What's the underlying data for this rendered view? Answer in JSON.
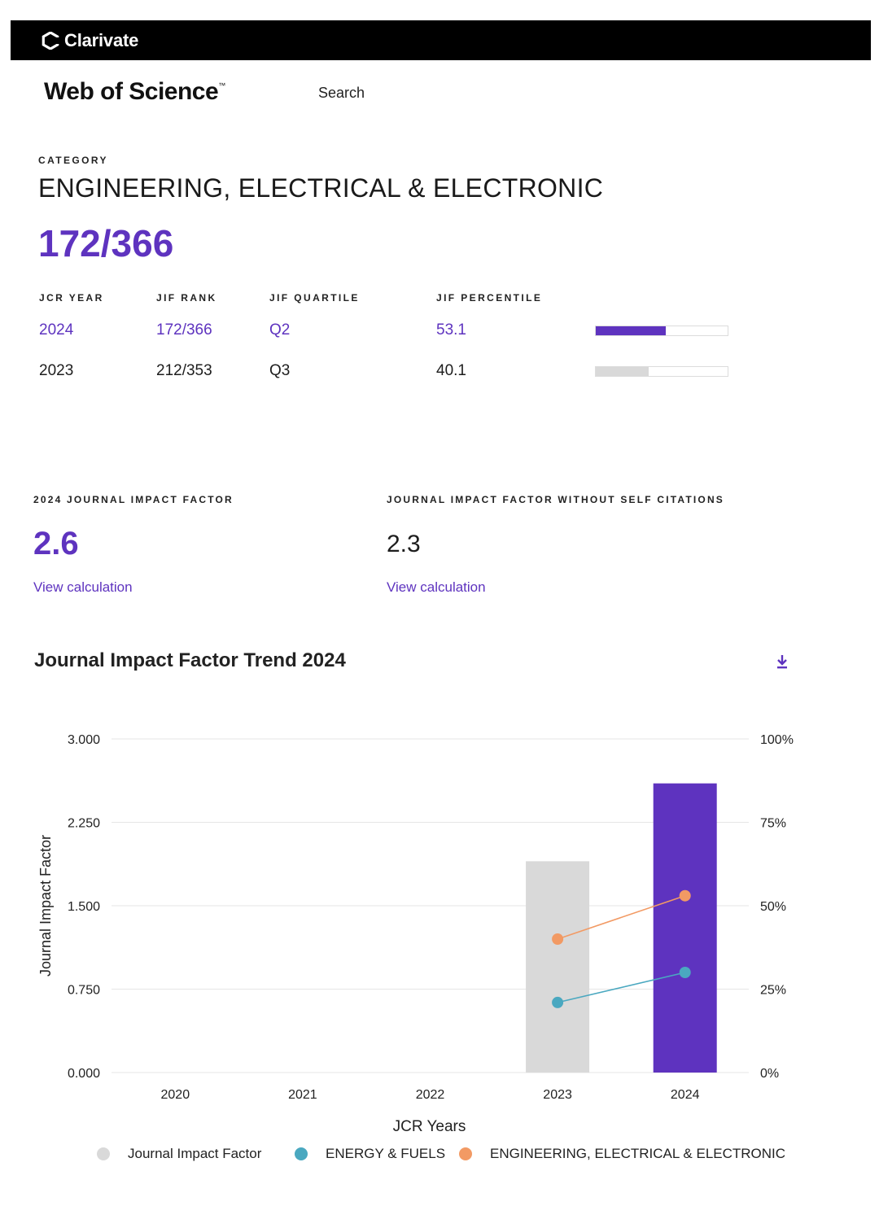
{
  "brand": {
    "name": "Clarivate"
  },
  "product": {
    "name": "Web of Science",
    "tm": "™"
  },
  "nav": {
    "search": "Search"
  },
  "category": {
    "label": "CATEGORY",
    "name": "ENGINEERING, ELECTRICAL & ELECTRONIC",
    "rank": "172/366"
  },
  "table": {
    "headers": [
      "JCR YEAR",
      "JIF RANK",
      "JIF QUARTILE",
      "JIF PERCENTILE"
    ],
    "rows": [
      {
        "year": "2024",
        "rank": "172/366",
        "quartile": "Q2",
        "percentile": "53.1",
        "percentile_value": 53.1,
        "bar_color": "#5e33bf"
      },
      {
        "year": "2023",
        "rank": "212/353",
        "quartile": "Q3",
        "percentile": "40.1",
        "percentile_value": 40.1,
        "bar_color": "#d9d9d9"
      }
    ]
  },
  "jif": {
    "label": "2024 JOURNAL IMPACT FACTOR",
    "value": "2.6",
    "link": "View calculation"
  },
  "jif_no_self": {
    "label": "JOURNAL IMPACT FACTOR WITHOUT SELF CITATIONS",
    "value": "2.3",
    "link": "View calculation"
  },
  "trend": {
    "title": "Journal Impact Factor Trend 2024"
  },
  "colors": {
    "accent": "#5e33bf",
    "bar_prior": "#d9d9d9",
    "energy": "#4aa8c0",
    "engineering": "#f29a64",
    "grid": "#e6e6e6"
  },
  "chart_data": {
    "type": "bar",
    "title": "Journal Impact Factor Trend 2024",
    "xlabel": "JCR Years",
    "ylabel": "Journal Impact Factor",
    "categories": [
      "2020",
      "2021",
      "2022",
      "2023",
      "2024"
    ],
    "ylim": [
      0,
      3
    ],
    "y_ticks": [
      "3.000",
      "2.250",
      "1.500",
      "0.750",
      "0.000"
    ],
    "y_tick_values": [
      3,
      2.25,
      1.5,
      0.75,
      0
    ],
    "y2lim": [
      0,
      100
    ],
    "y2_ticks": [
      "100%",
      "75%",
      "50%",
      "25%",
      "0%"
    ],
    "y2_tick_values": [
      100,
      75,
      50,
      25,
      0
    ],
    "series": [
      {
        "name": "Journal Impact Factor",
        "type": "bar",
        "axis": "left",
        "values": [
          null,
          null,
          null,
          1.9,
          2.6
        ]
      },
      {
        "name": "ENERGY & FUELS",
        "type": "line",
        "axis": "right",
        "values": [
          null,
          null,
          null,
          21,
          30
        ]
      },
      {
        "name": "ENGINEERING, ELECTRICAL & ELECTRONIC",
        "type": "line",
        "axis": "right",
        "values": [
          null,
          null,
          null,
          40,
          53
        ]
      }
    ],
    "legend": [
      "Journal Impact Factor",
      "ENERGY & FUELS",
      "ENGINEERING, ELECTRICAL & ELECTRONIC"
    ]
  }
}
